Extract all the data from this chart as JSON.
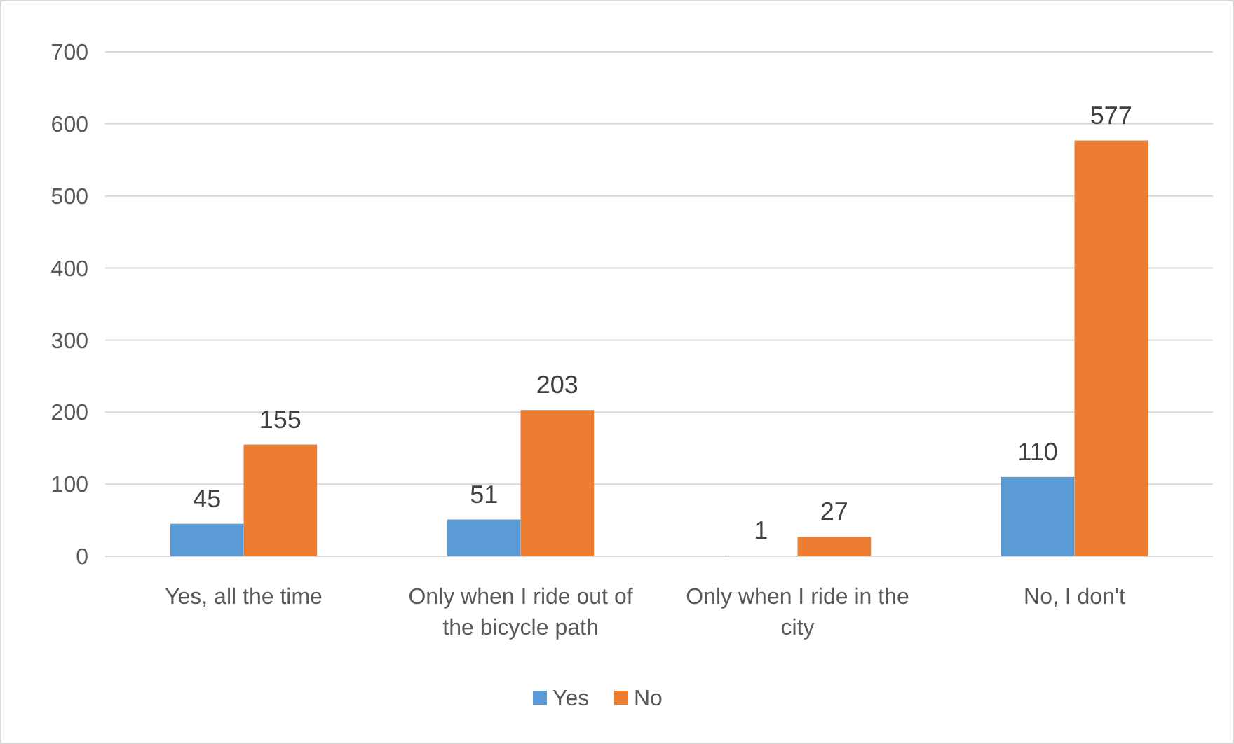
{
  "chart_data": {
    "type": "bar",
    "categories": [
      "Yes, all the time",
      "Only when I ride out of the bicycle path",
      "Only when I ride in the city",
      "No, I don't"
    ],
    "series": [
      {
        "name": "Yes",
        "color": "#5b9bd5",
        "values": [
          45,
          51,
          1,
          110
        ]
      },
      {
        "name": "No",
        "color": "#ed7d31",
        "values": [
          155,
          203,
          27,
          577
        ]
      }
    ],
    "ylim": [
      0,
      700
    ],
    "yticks": [
      0,
      100,
      200,
      300,
      400,
      500,
      600,
      700
    ],
    "grid": "y",
    "legend": "bottom",
    "data_labels": true
  }
}
